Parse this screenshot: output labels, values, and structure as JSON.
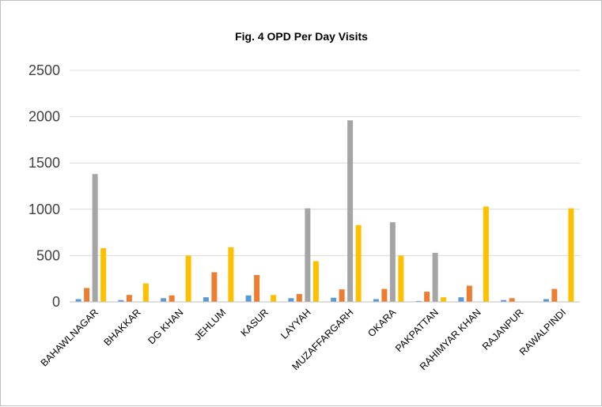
{
  "chart_data": {
    "type": "bar",
    "title": "Fig. 4 OPD Per Day Visits",
    "xlabel": "",
    "ylabel": "",
    "ylim": [
      0,
      2500
    ],
    "yticks": [
      0,
      500,
      1000,
      1500,
      2000,
      2500
    ],
    "grid": true,
    "legend": "none",
    "categories": [
      "BAHAWLNAGAR",
      "BHAKKAR",
      "DG KHAN",
      "JEHLUM",
      "KASUR",
      "LAYYAH",
      "MUZAFFARGARH",
      "OKARA",
      "PAKPATTAN",
      "RAHIMYAR KHAN",
      "RAJANPUR",
      "RAWALPINDI"
    ],
    "series": [
      {
        "color": "#5b9bd5",
        "values": [
          30,
          20,
          40,
          50,
          70,
          40,
          45,
          30,
          10,
          50,
          20,
          30
        ]
      },
      {
        "color": "#ed7d31",
        "values": [
          150,
          75,
          70,
          320,
          290,
          85,
          135,
          140,
          110,
          175,
          40,
          140
        ]
      },
      {
        "color": "#a5a5a5",
        "values": [
          1380,
          0,
          0,
          0,
          0,
          1010,
          1960,
          860,
          530,
          0,
          0,
          0
        ]
      },
      {
        "color": "#ffc000",
        "values": [
          580,
          200,
          500,
          590,
          75,
          440,
          830,
          500,
          50,
          1030,
          0,
          1010
        ]
      }
    ]
  }
}
